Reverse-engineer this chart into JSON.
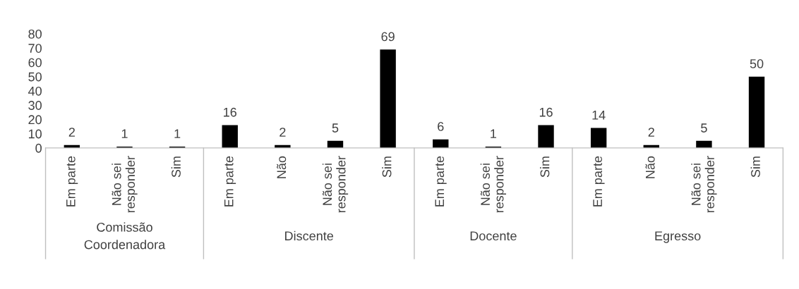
{
  "chart_data": {
    "type": "bar",
    "categories": [
      "Em parte",
      "Não sei\nresponder",
      "Sim",
      "Em parte",
      "Não",
      "Não sei\nresponder",
      "Sim",
      "Em parte",
      "Não sei\nresponder",
      "Sim",
      "Em parte",
      "Não",
      "Não sei\nresponder",
      "Sim"
    ],
    "values": [
      2,
      1,
      1,
      16,
      2,
      5,
      69,
      6,
      1,
      16,
      14,
      2,
      5,
      50
    ],
    "color": "#000000",
    "ylim": [
      0,
      80
    ],
    "yticks": [
      0,
      10,
      20,
      30,
      40,
      50,
      60,
      70,
      80
    ],
    "data_labels": true,
    "grid": false,
    "legend": false,
    "annotations": [
      "Comissão\nCoordenadora",
      "Discente",
      "Docente",
      "Egresso"
    ]
  }
}
